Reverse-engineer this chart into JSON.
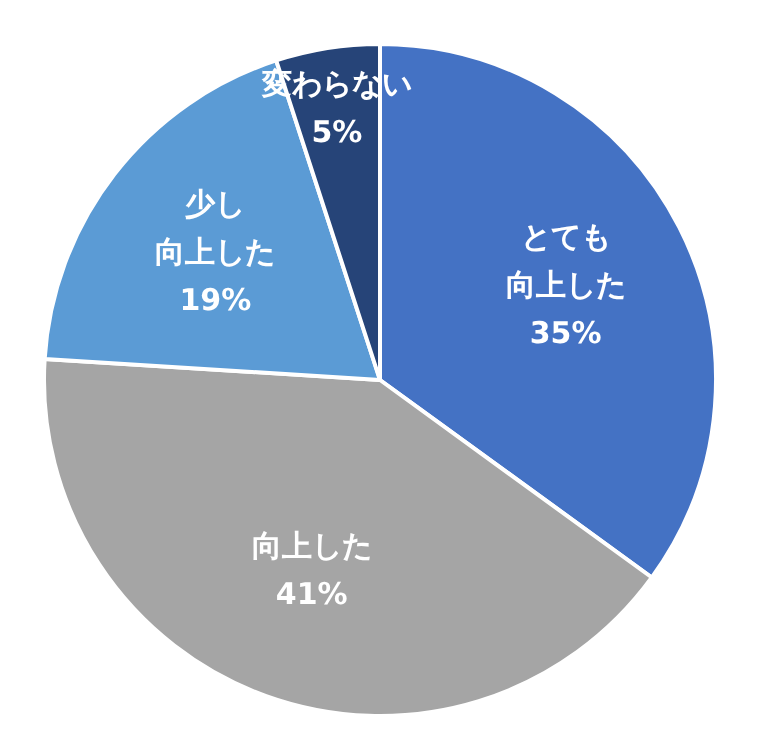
{
  "chart_data": {
    "type": "pie",
    "categories": [
      "とても向上した",
      "向上した",
      "少し向上した",
      "変わらない"
    ],
    "values": [
      35,
      41,
      19,
      5
    ],
    "value_labels": [
      "35%",
      "41%",
      "19%",
      "5%"
    ],
    "colors": [
      "#4472c4",
      "#a5a5a5",
      "#5b9bd5",
      "#264478"
    ]
  }
}
